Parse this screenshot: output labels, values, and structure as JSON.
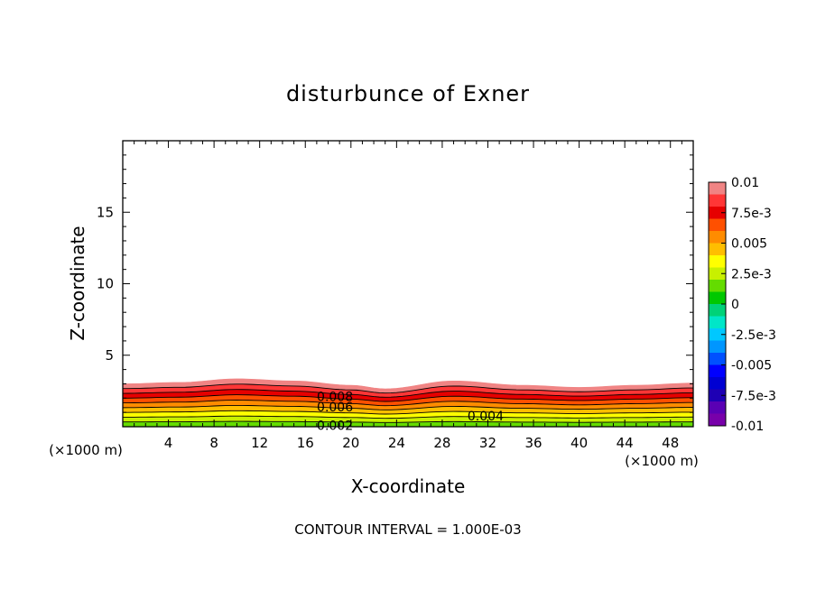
{
  "chart_data": {
    "type": "contour",
    "title": "disturbunce of Exner",
    "xlabel": "X-coordinate",
    "ylabel": "Z-coordinate",
    "x_unit_left": "(×1000 m)",
    "x_unit_right": "(×1000 m)",
    "xlim": [
      0,
      50
    ],
    "ylim": [
      0,
      20
    ],
    "x_ticks": [
      4,
      8,
      12,
      16,
      20,
      24,
      28,
      32,
      36,
      40,
      44,
      48
    ],
    "y_ticks": [
      5,
      10,
      15
    ],
    "footer": "CONTOUR INTERVAL = 1.000E-03",
    "contour_interval": 0.001,
    "contour_labels": [
      {
        "text": "0.008",
        "x": 18.6,
        "z": 2.1
      },
      {
        "text": "0.006",
        "x": 18.6,
        "z": 1.4
      },
      {
        "text": "0.004",
        "x": 31.8,
        "z": 0.75
      },
      {
        "text": "0.002",
        "x": 18.6,
        "z": 0.1
      }
    ],
    "field_top_height": [
      {
        "x": 0,
        "z": 3.0
      },
      {
        "x": 5,
        "z": 3.1
      },
      {
        "x": 10,
        "z": 3.35
      },
      {
        "x": 15,
        "z": 3.2
      },
      {
        "x": 20,
        "z": 2.9
      },
      {
        "x": 23,
        "z": 2.65
      },
      {
        "x": 29,
        "z": 3.2
      },
      {
        "x": 35,
        "z": 2.9
      },
      {
        "x": 40,
        "z": 2.75
      },
      {
        "x": 45,
        "z": 2.9
      },
      {
        "x": 50,
        "z": 3.05
      }
    ],
    "colorbar": {
      "min": -0.01,
      "max": 0.01,
      "tick_labels": [
        "0.01",
        "7.5e-3",
        "0.005",
        "2.5e-3",
        "0",
        "-2.5e-3",
        "-0.005",
        "-7.5e-3",
        "-0.01"
      ],
      "colors": [
        "#f08484",
        "#ff3636",
        "#e60000",
        "#ff5000",
        "#ff8c00",
        "#ffbe00",
        "#ffff00",
        "#c8f000",
        "#64dc00",
        "#00c800",
        "#00d278",
        "#00e6c8",
        "#00c8ff",
        "#0096ff",
        "#0050ff",
        "#0000ff",
        "#0000d2",
        "#1e00b4",
        "#5a00b4",
        "#7800aa"
      ]
    },
    "field_colors": [
      "#64dc00",
      "#c8f000",
      "#ffff00",
      "#ffbe00",
      "#ff8c00",
      "#ff5000",
      "#e60000",
      "#ff3636",
      "#f08484"
    ]
  }
}
